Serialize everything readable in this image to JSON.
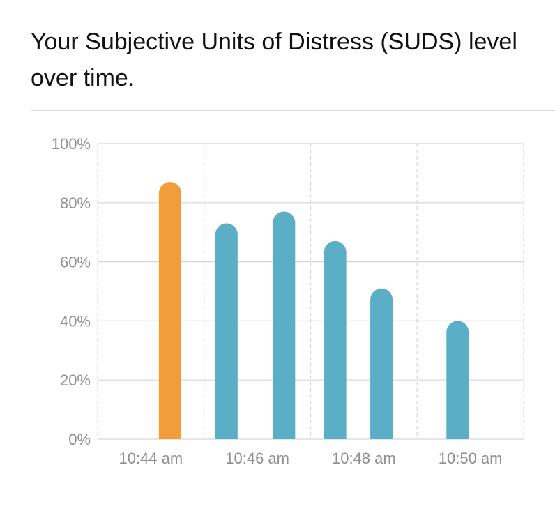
{
  "title": "Your Subjective Units of Distress (SUDS) level over time.",
  "chart_data": {
    "type": "bar",
    "title": "Your Subjective Units of Distress (SUDS) level over time.",
    "ylim": [
      0,
      100
    ],
    "y_unit": "%",
    "yticks": [
      0,
      20,
      40,
      60,
      80,
      100
    ],
    "yticks_labels": [
      "0%",
      "20%",
      "40%",
      "60%",
      "80%",
      "100%"
    ],
    "x_range_minutes": [
      43,
      51
    ],
    "xticks": [
      {
        "label": "10:44 am",
        "minute": 44
      },
      {
        "label": "10:46 am",
        "minute": 46
      },
      {
        "label": "10:48 am",
        "minute": 48
      },
      {
        "label": "10:50 am",
        "minute": 50
      }
    ],
    "points": [
      {
        "minute": 44.36,
        "value": 87,
        "color": "#f39c3b"
      },
      {
        "minute": 45.42,
        "value": 73,
        "color": "#5aafc6"
      },
      {
        "minute": 46.5,
        "value": 77,
        "color": "#5aafc6"
      },
      {
        "minute": 47.46,
        "value": 67,
        "color": "#5aafc6"
      },
      {
        "minute": 48.33,
        "value": 51,
        "color": "#5aafc6"
      },
      {
        "minute": 49.76,
        "value": 40,
        "color": "#5aafc6"
      }
    ],
    "grid": true,
    "colors": {
      "baseline": "#f39c3b",
      "followup": "#5aafc6",
      "grid": "#d6d6d6",
      "axis_text": "#8e8e93"
    }
  }
}
